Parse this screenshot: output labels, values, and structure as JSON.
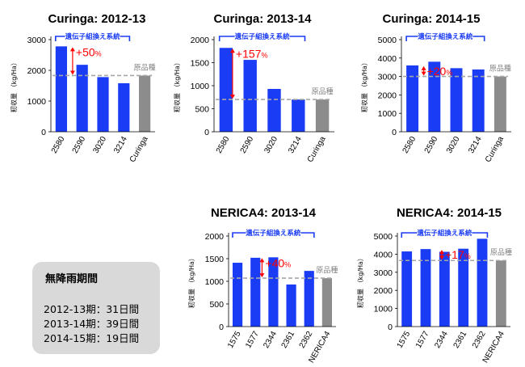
{
  "colors": {
    "bar": "#1a3cf5",
    "baseline_bar": "#8c8c8c",
    "group_bracket": "#1a3cf5",
    "gain": "#ff0000",
    "reference_line": "#a6a6a6"
  },
  "chart_data": [
    {
      "type": "bar",
      "title": "Curinga: 2012-13",
      "ylabel": "籾収量 （kg/Ha）",
      "ylim": [
        0,
        3000
      ],
      "yticks": [
        0,
        1000,
        2000,
        3000
      ],
      "categories": [
        "2580",
        "2590",
        "3020",
        "3214",
        "Curinga"
      ],
      "values": [
        2780,
        2180,
        1780,
        1580,
        1830
      ],
      "baseline_category": "Curinga",
      "group_label": "遺伝子組換え系統",
      "baseline_label": "原品種",
      "gain_label": "+50",
      "gain_unit": "%"
    },
    {
      "type": "bar",
      "title": "Curinga: 2013-14",
      "ylabel": "籾収量 （kg/Ha）",
      "ylim": [
        0,
        2000
      ],
      "yticks": [
        0,
        500,
        1000,
        1500,
        2000
      ],
      "categories": [
        "2580",
        "2590",
        "3020",
        "3214",
        "Curinga"
      ],
      "values": [
        1820,
        1560,
        930,
        700,
        700
      ],
      "baseline_category": "Curinga",
      "group_label": "遺伝子組換え系統",
      "baseline_label": "原品種",
      "gain_label": "+157",
      "gain_unit": "%"
    },
    {
      "type": "bar",
      "title": "Curinga: 2014-15",
      "ylabel": "籾収量 （kg/Ha）",
      "ylim": [
        0,
        5000
      ],
      "yticks": [
        0,
        1000,
        2000,
        3000,
        4000,
        5000
      ],
      "categories": [
        "2580",
        "2590",
        "3020",
        "3214",
        "Curinga"
      ],
      "values": [
        3600,
        3800,
        3450,
        3380,
        3000
      ],
      "baseline_category": "Curinga",
      "group_label": "遺伝子組換え系統",
      "baseline_label": "原品種",
      "gain_label": "+20",
      "gain_unit": "%"
    },
    {
      "type": "bar",
      "title": "NERICA4: 2013-14",
      "ylabel": "籾収量 （kg/Ha）",
      "ylim": [
        0,
        2000
      ],
      "yticks": [
        0,
        500,
        1000,
        1500,
        2000
      ],
      "categories": [
        "1575",
        "1577",
        "2344",
        "2361",
        "2362",
        "NERICA4"
      ],
      "values": [
        1410,
        1520,
        1530,
        930,
        1230,
        1070
      ],
      "baseline_category": "NERICA4",
      "group_label": "遺伝子組換え系統",
      "baseline_label": "原品種",
      "gain_label": "+40",
      "gain_unit": "%"
    },
    {
      "type": "bar",
      "title": "NERICA4: 2014-15",
      "ylabel": "籾収量 （kg/Ha）",
      "ylim": [
        0,
        5000
      ],
      "yticks": [
        0,
        1000,
        2000,
        3000,
        4000,
        5000
      ],
      "categories": [
        "1575",
        "1577",
        "2344",
        "2361",
        "2362",
        "NERICA4"
      ],
      "values": [
        4150,
        4280,
        4130,
        4300,
        4850,
        3650
      ],
      "baseline_category": "NERICA4",
      "group_label": "遺伝子組換え系統",
      "baseline_label": "原品種",
      "gain_label": "+17",
      "gain_unit": "%"
    }
  ],
  "drought_note": {
    "title": "無降雨期間",
    "lines": [
      "2012-13期：31日間",
      "2013-14期：39日間",
      "2014-15期：19日間"
    ]
  }
}
